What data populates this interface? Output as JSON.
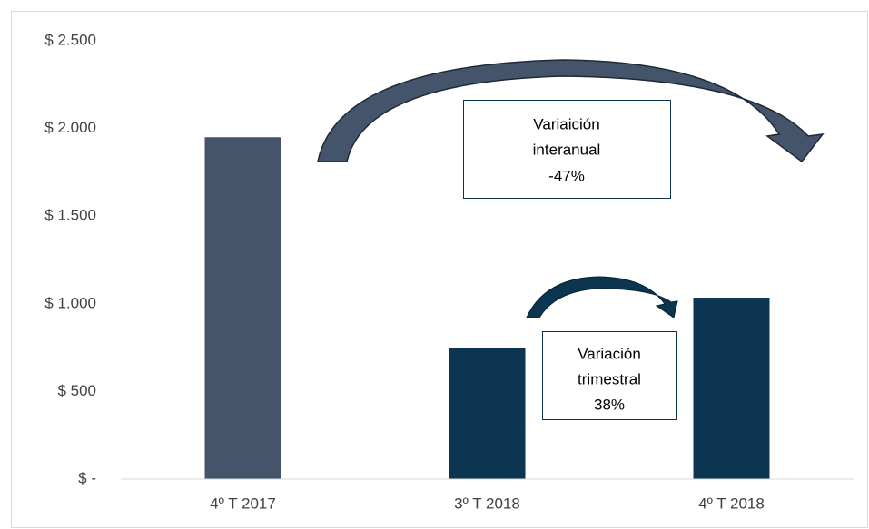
{
  "chart_data": {
    "type": "bar",
    "categories": [
      "4º T 2017",
      "3º T 2018",
      "4º T 2018"
    ],
    "values": [
      1950,
      750,
      1035
    ],
    "colors": [
      "#44546a",
      "#0b3550",
      "#0b3550"
    ],
    "ylim": [
      0,
      2500
    ],
    "yticks": [
      {
        "value": 0,
        "label": "$ -"
      },
      {
        "value": 500,
        "label": "$ 500"
      },
      {
        "value": 1000,
        "label": "$ 1.000"
      },
      {
        "value": 1500,
        "label": "$ 1.500"
      },
      {
        "value": 2000,
        "label": "$ 2.000"
      },
      {
        "value": 2500,
        "label": "$ 2.500"
      }
    ],
    "grid": false,
    "annotations": [
      {
        "lines": [
          "Variaición",
          "interanual",
          "-47%"
        ]
      },
      {
        "lines": [
          "Variación",
          "trimestral",
          "38%"
        ]
      }
    ]
  }
}
